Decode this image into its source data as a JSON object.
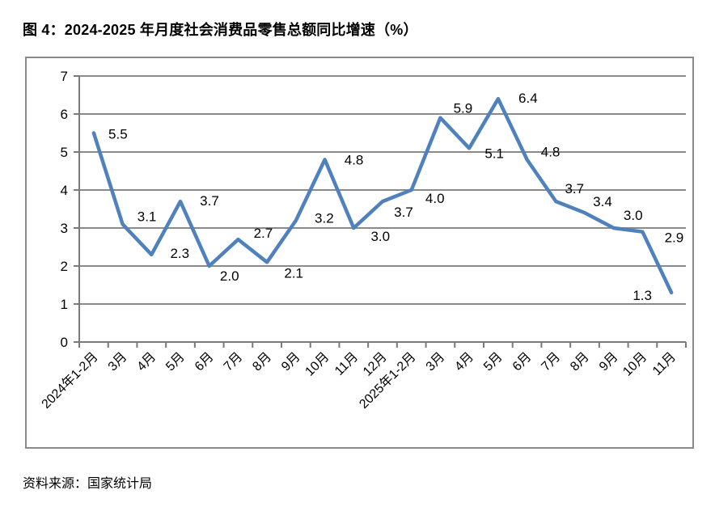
{
  "title": "图 4：2024-2025 年月度社会消费品零售总额同比增速（%）",
  "source": "资料来源：国家统计局",
  "chart_data": {
    "type": "line",
    "title": "图 4：2024-2025 年月度社会消费品零售总额同比增速（%）",
    "categories": [
      "2024年1-2月",
      "3月",
      "4月",
      "5月",
      "6月",
      "7月",
      "8月",
      "9月",
      "10月",
      "11月",
      "12月",
      "2025年1-2月",
      "3月",
      "4月",
      "5月",
      "6月",
      "7月",
      "8月",
      "9月",
      "10月",
      "11月"
    ],
    "values": [
      5.5,
      3.1,
      2.3,
      3.7,
      2.0,
      2.7,
      2.1,
      3.2,
      4.8,
      3.0,
      3.7,
      4.0,
      5.9,
      5.1,
      6.4,
      4.8,
      3.7,
      3.4,
      3.0,
      2.9,
      1.3
    ],
    "data_labels": [
      "5.5",
      "3.1",
      "2.3",
      "3.7",
      "2.0",
      "2.7",
      "2.1",
      "3.2",
      "4.8",
      "3.0",
      "3.7",
      "4.0",
      "5.9",
      "5.1",
      "6.4",
      "4.8",
      "3.7",
      "3.4",
      "3.0",
      "2.9",
      "1.3"
    ],
    "xlabel": "",
    "ylabel": "",
    "ylim": [
      0,
      7
    ],
    "yticks": [
      0,
      1,
      2,
      3,
      4,
      5,
      6,
      7
    ],
    "grid": true,
    "legend_position": "none",
    "line_color": "#4F81BD",
    "grid_color": "#8a8a8a",
    "axis_color": "#7a7a7a",
    "label_color": "#000000"
  }
}
